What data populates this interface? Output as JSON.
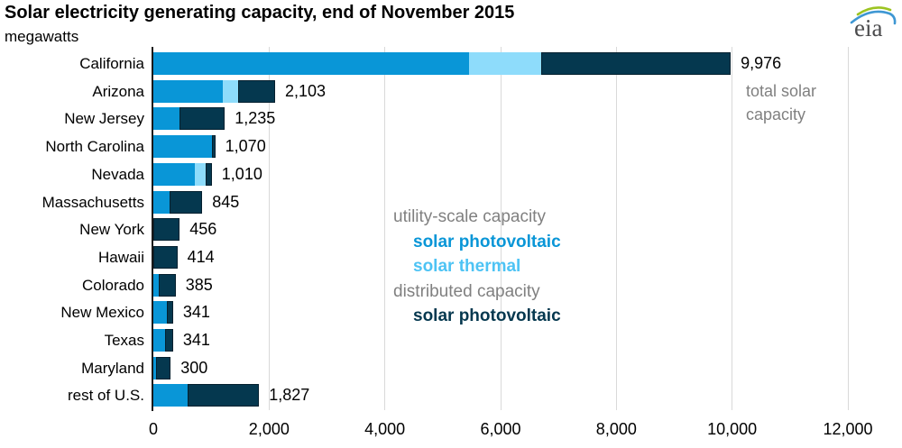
{
  "title": "Solar electricity generating capacity, end of November 2015",
  "subtitle": "megawatts",
  "logo": {
    "text": "eia"
  },
  "annotation": {
    "text": "total solar capacity"
  },
  "colors": {
    "utility_pv": "#0996D7",
    "solar_thermal": "#8EDCFB",
    "solar_thermal_text": "#4DC3F4",
    "distributed_pv": "#05384F",
    "distributed_border": "#04202F",
    "gray_text": "#808080",
    "gridline": "#D9D9D9",
    "axis": "#1A1A1A",
    "logo_text": "#4A4A4C",
    "logo_swoosh_green": "#9CC421",
    "logo_swoosh_blue": "#3E97D3"
  },
  "legend": {
    "items": [
      {
        "label": "utility-scale capacity",
        "color_key": "gray_text",
        "bold": false,
        "indent": false
      },
      {
        "label": "solar photovoltaic",
        "color_key": "utility_pv",
        "bold": true,
        "indent": true
      },
      {
        "label": "solar thermal",
        "color_key": "solar_thermal_text",
        "bold": true,
        "indent": true
      },
      {
        "label": "distributed capacity",
        "color_key": "gray_text",
        "bold": false,
        "indent": false
      },
      {
        "label": "solar photovoltaic",
        "color_key": "distributed_pv",
        "bold": true,
        "indent": true
      }
    ]
  },
  "chart_data": {
    "type": "bar",
    "orientation": "horizontal",
    "stacked": true,
    "title": "Solar electricity generating capacity, end of November 2015",
    "ylabel": "",
    "xlabel": "megawatts",
    "xlim": [
      0,
      12000
    ],
    "grid": true,
    "legend_position": "center-right",
    "categories": [
      "California",
      "Arizona",
      "New Jersey",
      "North Carolina",
      "Nevada",
      "Massachusetts",
      "New York",
      "Hawaii",
      "Colorado",
      "New Mexico",
      "Texas",
      "Maryland",
      "rest of U.S."
    ],
    "series": [
      {
        "name": "utility-scale solar photovoltaic",
        "color_key": "utility_pv",
        "values": [
          5450,
          1200,
          450,
          1020,
          710,
          280,
          0,
          0,
          100,
          235,
          200,
          45,
          592
        ]
      },
      {
        "name": "utility-scale solar thermal",
        "color_key": "solar_thermal",
        "values": [
          1250,
          270,
          0,
          0,
          195,
          0,
          0,
          0,
          0,
          0,
          0,
          0,
          0
        ]
      },
      {
        "name": "distributed solar photovoltaic",
        "color_key": "distributed_pv",
        "values": [
          3276,
          633,
          785,
          50,
          105,
          565,
          456,
          414,
          285,
          106,
          141,
          255,
          1235
        ]
      }
    ],
    "totals": [
      9976,
      2103,
      1235,
      1070,
      1010,
      845,
      456,
      414,
      385,
      341,
      341,
      300,
      1827
    ],
    "totals_formatted": [
      "9,976",
      "2,103",
      "1,235",
      "1,070",
      "1,010",
      "845",
      "456",
      "414",
      "385",
      "341",
      "341",
      "300",
      "1,827"
    ],
    "x_ticks": [
      0,
      2000,
      4000,
      6000,
      8000,
      10000,
      12000
    ],
    "x_tick_labels": [
      "0",
      "2,000",
      "4,000",
      "6,000",
      "8,000",
      "10,000",
      "12,000"
    ]
  }
}
